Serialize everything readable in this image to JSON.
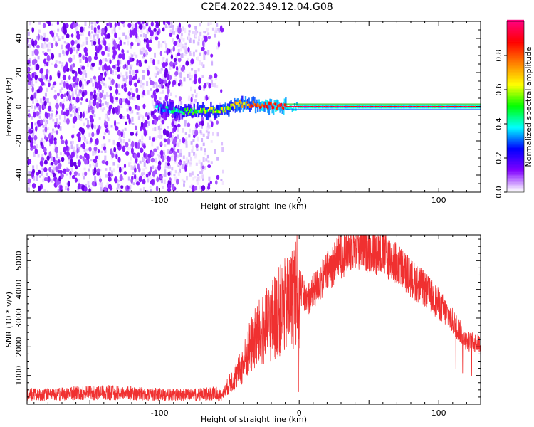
{
  "title": "C2E4.2022.349.12.04.G08",
  "chart_data": [
    {
      "type": "heatmap",
      "title": "",
      "xlabel": "Height of straight line (km)",
      "ylabel": "Frequency (Hz)",
      "xlim": [
        -195,
        130
      ],
      "ylim": [
        -50,
        50
      ],
      "xticks": [
        -100,
        0,
        100
      ],
      "yticks": [
        -40,
        -20,
        0,
        20,
        40
      ],
      "colorbar": {
        "label": "Normalized spectral amplitude",
        "range": [
          0.0,
          1.0
        ],
        "ticks": [
          0.0,
          0.2,
          0.4,
          0.6,
          0.8
        ],
        "colormap": [
          "#ffffff",
          "#8000ff",
          "#0000ff",
          "#00ffff",
          "#00ff00",
          "#ffff00",
          "#ff8000",
          "#ff0000",
          "#ff0080"
        ]
      },
      "noise_region_x": [
        -195,
        -55
      ],
      "signal_line": [
        {
          "x": -103,
          "freq": 0.0,
          "amp": 0.3
        },
        {
          "x": -85,
          "freq": -3.0,
          "amp": 0.45
        },
        {
          "x": -75,
          "freq": -2.5,
          "amp": 0.5
        },
        {
          "x": -60,
          "freq": -2.0,
          "amp": 0.55
        },
        {
          "x": -50,
          "freq": -1.0,
          "amp": 0.6
        },
        {
          "x": -45,
          "freq": 2.0,
          "amp": 0.65
        },
        {
          "x": -40,
          "freq": 1.5,
          "amp": 0.7
        },
        {
          "x": -30,
          "freq": 1.0,
          "amp": 0.8
        },
        {
          "x": -20,
          "freq": 0.5,
          "amp": 0.85
        },
        {
          "x": -10,
          "freq": 0.0,
          "amp": 0.9
        },
        {
          "x": 0,
          "freq": 0.0,
          "amp": 0.95
        },
        {
          "x": 50,
          "freq": 0.0,
          "amp": 0.95
        },
        {
          "x": 100,
          "freq": 0.0,
          "amp": 0.95
        },
        {
          "x": 130,
          "freq": 0.0,
          "amp": 0.95
        }
      ]
    },
    {
      "type": "line",
      "title": "",
      "xlabel": "Height of straight line (km)",
      "ylabel": "SNR (10 * v/v)",
      "xlim": [
        -195,
        130
      ],
      "ylim": [
        0,
        5900
      ],
      "xticks": [
        -100,
        0,
        100
      ],
      "yticks": [
        1000,
        2000,
        3000,
        4000,
        5000
      ],
      "color": "#f03030",
      "series": [
        {
          "x": [
            -195,
            -180,
            -160,
            -140,
            -120,
            -100,
            -80,
            -70,
            -60,
            -55,
            -50,
            -45,
            -40,
            -35,
            -30,
            -25,
            -20,
            -15,
            -10,
            -5,
            -2,
            0,
            5,
            10,
            20,
            30,
            40,
            50,
            60,
            70,
            80,
            90,
            100,
            110,
            120,
            130
          ],
          "values": [
            400,
            400,
            450,
            480,
            450,
            400,
            380,
            400,
            450,
            350,
            700,
            1000,
            1400,
            2000,
            2400,
            2600,
            2900,
            3200,
            3400,
            3700,
            4000,
            4200,
            3600,
            3900,
            4600,
            5200,
            5600,
            5400,
            5300,
            4900,
            4400,
            4000,
            3500,
            2900,
            2200,
            2100
          ]
        }
      ]
    }
  ]
}
